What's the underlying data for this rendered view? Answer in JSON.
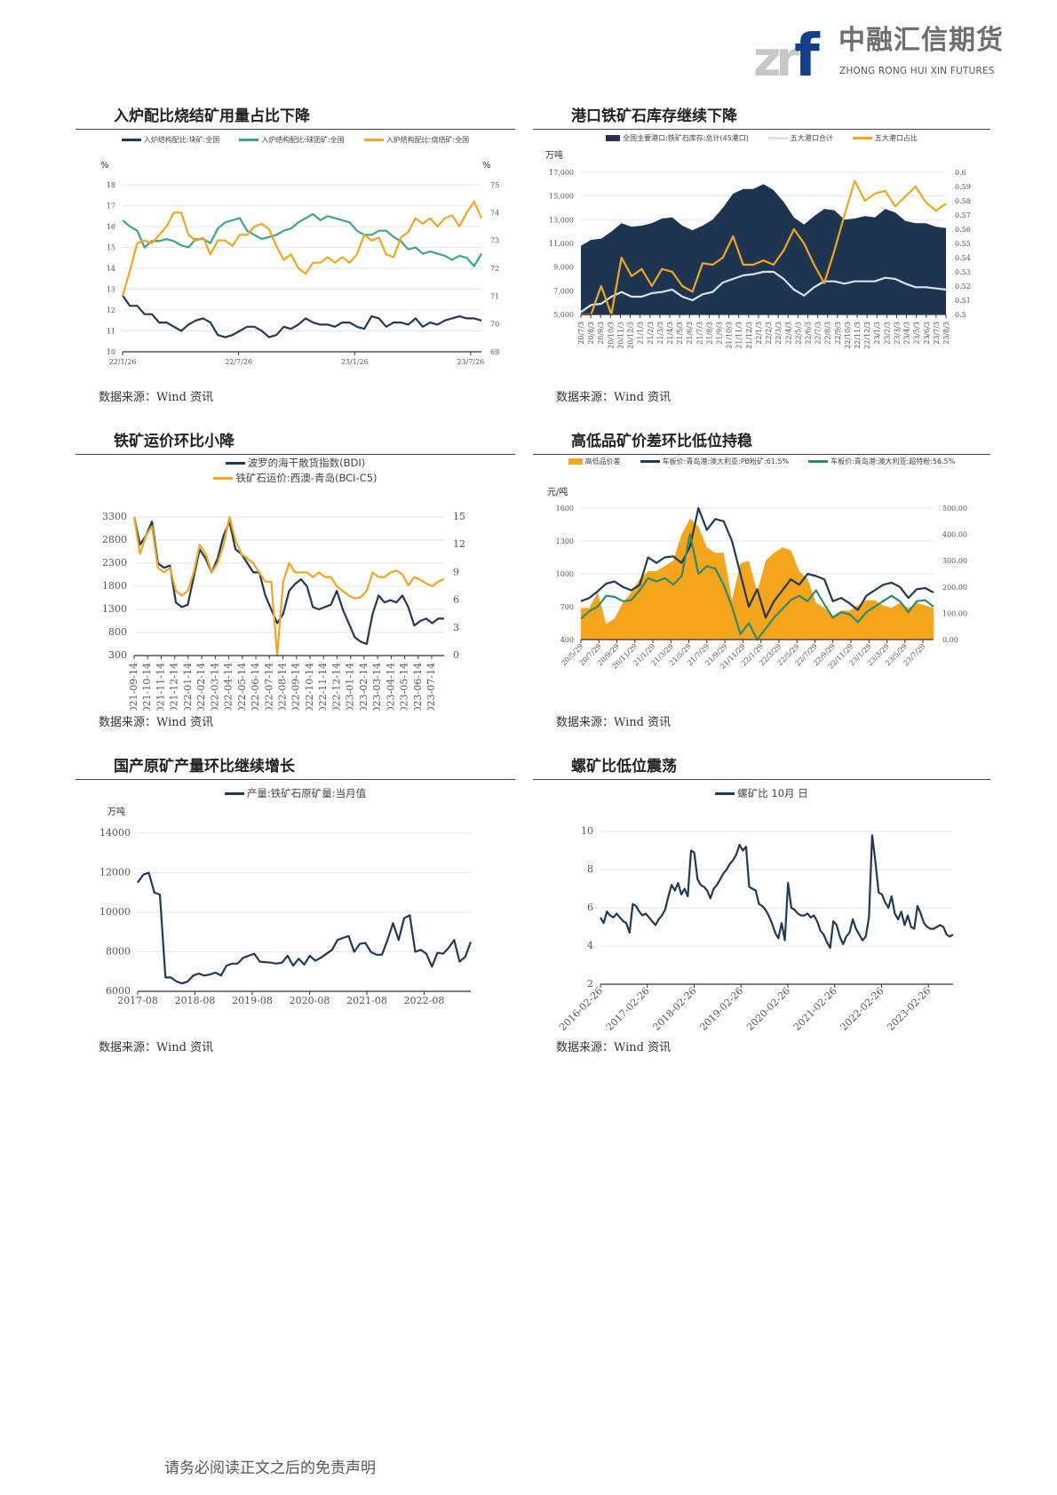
{
  "header": {
    "logo_mark": "zrf",
    "logo_cn": "中融汇信期货",
    "logo_en": "ZHONG RONG HUI XIN FUTURES"
  },
  "footer": "请务必阅读正文之后的免责声明",
  "colors": {
    "navy": "#1f3a56",
    "teal": "#3aa58c",
    "orange": "#f5a51c",
    "light": "#d9e3eb",
    "darkarea": "#1d3550"
  },
  "panels": [
    {
      "title": "入炉配比烧结矿用量占比下降",
      "source": "数据来源：Wind 资讯",
      "unit_left": "%",
      "unit_right": "%"
    },
    {
      "title": "港口铁矿石库存继续下降",
      "source": "数据来源：Wind 资讯",
      "unit_left": "万吨"
    },
    {
      "title": "铁矿运价环比小降",
      "source": "数据来源：Wind 资讯"
    },
    {
      "title": "高低品矿价差环比低位持稳",
      "source": "数据来源：Wind 资讯",
      "unit_left": "元/吨"
    },
    {
      "title": "国产原矿产量环比继续增长",
      "source": "数据来源：Wind 资讯",
      "unit_left": "万吨"
    },
    {
      "title": "螺矿比低位震荡",
      "source": "数据来源：Wind 资讯"
    }
  ],
  "chart_data": [
    {
      "type": "line",
      "title": "入炉配比烧结矿用量占比下降",
      "xticks": [
        "22/1/26",
        "22/7/26",
        "23/1/26",
        "23/7/26"
      ],
      "ylim": [
        10,
        18
      ],
      "yticks": [
        "10",
        "11",
        "12",
        "13",
        "14",
        "15",
        "16",
        "17",
        "18"
      ],
      "y2lim": [
        69,
        75
      ],
      "y2ticks": [
        "69",
        "70",
        "71",
        "72",
        "73",
        "74",
        "75"
      ],
      "series": [
        {
          "name": "入炉结构配比:块矿:全国",
          "axis": "left",
          "color": "#1f3a56",
          "values": [
            12.7,
            12.2,
            12.2,
            11.8,
            11.8,
            11.4,
            11.4,
            11.2,
            11.0,
            11.3,
            11.5,
            11.6,
            11.4,
            10.8,
            10.7,
            10.8,
            11.0,
            11.2,
            11.2,
            11.0,
            10.7,
            10.8,
            11.2,
            11.1,
            11.3,
            11.6,
            11.4,
            11.3,
            11.3,
            11.2,
            11.4,
            11.4,
            11.2,
            11.1,
            11.7,
            11.6,
            11.2,
            11.4,
            11.4,
            11.3,
            11.6,
            11.2,
            11.4,
            11.3,
            11.5,
            11.6,
            11.7,
            11.6,
            11.6,
            11.5
          ]
        },
        {
          "name": "入炉结构配比:球团矿:全国",
          "axis": "left",
          "color": "#3aa58c",
          "values": [
            16.3,
            16.0,
            15.8,
            15.0,
            15.3,
            15.3,
            15.4,
            15.3,
            15.1,
            15.0,
            15.4,
            15.4,
            15.2,
            15.9,
            16.2,
            16.3,
            16.4,
            15.8,
            15.6,
            15.4,
            15.5,
            15.6,
            15.8,
            15.9,
            16.2,
            16.4,
            16.6,
            16.3,
            16.5,
            16.4,
            16.3,
            16.2,
            15.8,
            15.6,
            15.6,
            15.8,
            15.8,
            15.5,
            15.3,
            14.9,
            15.0,
            14.7,
            14.8,
            14.7,
            14.6,
            14.4,
            14.6,
            14.5,
            14.1,
            14.7
          ]
        },
        {
          "name": "入炉结构配比:烧结矿:全国",
          "axis": "right",
          "color": "#f5a51c",
          "values": [
            71,
            71.9,
            72.9,
            73,
            72.9,
            73.2,
            73.5,
            74,
            74,
            73.2,
            73,
            73.1,
            72.5,
            73,
            73,
            72.8,
            73.2,
            73.2,
            73.5,
            73.6,
            73.4,
            72.8,
            72.3,
            72.5,
            72.0,
            71.8,
            72.2,
            72.2,
            72.4,
            72.2,
            72.4,
            72.2,
            72.5,
            73.2,
            73.0,
            73.1,
            72.5,
            72.4,
            73.1,
            73.3,
            73.8,
            73.6,
            73.8,
            73.5,
            73.8,
            73.9,
            73.5,
            74.0,
            74.4,
            73.8
          ]
        }
      ]
    },
    {
      "type": "area",
      "title": "港口铁矿石库存继续下降",
      "xticks": [
        "20/7/3",
        "20/8/3",
        "20/9/3",
        "20/10/3",
        "20/11/3",
        "20/12/3",
        "21/1/3",
        "21/2/3",
        "21/3/3",
        "21/4/3",
        "21/5/3",
        "21/6/3",
        "21/7/3",
        "21/8/3",
        "21/9/3",
        "21/10/3",
        "21/11/3",
        "21/12/3",
        "22/1/3",
        "22/2/3",
        "22/3/3",
        "22/4/3",
        "22/5/3",
        "22/6/3",
        "22/7/3",
        "22/8/3",
        "22/9/3",
        "22/10/3",
        "22/11/3",
        "22/12/3",
        "23/1/3",
        "23/2/3",
        "23/3/3",
        "23/4/3",
        "23/5/3",
        "23/6/3",
        "23/7/3",
        "23/8/3"
      ],
      "ylim": [
        5000,
        17000
      ],
      "yticks": [
        "5,000",
        "7,000",
        "9,000",
        "11,000",
        "13,000",
        "15,000",
        "17,000"
      ],
      "y2lim": [
        0.5,
        0.6
      ],
      "y2ticks": [
        "0.5",
        "0.51",
        "0.52",
        "0.53",
        "0.54",
        "0.55",
        "0.56",
        "0.57",
        "0.58",
        "0.59",
        "0.6"
      ],
      "series": [
        {
          "name": "全国主要港口:铁矿石库存:总计(45港口)",
          "axis": "left",
          "kind": "area",
          "color": "#1d3550",
          "values": [
            10800,
            11300,
            11400,
            12000,
            12700,
            12400,
            12500,
            12700,
            13100,
            13200,
            12500,
            12100,
            12500,
            13000,
            14000,
            15200,
            15600,
            15600,
            16000,
            15500,
            14500,
            13200,
            12600,
            13300,
            13900,
            13800,
            13000,
            13100,
            13300,
            13200,
            13900,
            13600,
            12900,
            12700,
            12700,
            12400,
            12300
          ]
        },
        {
          "name": "五大港口合计",
          "axis": "left",
          "color": "#d9e3eb",
          "values": [
            5200,
            5800,
            5900,
            6500,
            6900,
            6500,
            6500,
            6800,
            6900,
            7100,
            6500,
            6200,
            6700,
            6900,
            7700,
            8000,
            8300,
            8400,
            8600,
            8600,
            8000,
            7100,
            6600,
            7300,
            7800,
            7800,
            7600,
            7800,
            7800,
            7800,
            8100,
            8000,
            7600,
            7300,
            7300,
            7200,
            7100
          ]
        },
        {
          "name": "五大港口占比",
          "axis": "right",
          "color": "#f5a51c",
          "values": [
            0.5,
            0.5,
            0.52,
            0.5,
            0.54,
            0.527,
            0.532,
            0.52,
            0.532,
            0.53,
            0.52,
            0.516,
            0.536,
            0.535,
            0.54,
            0.555,
            0.535,
            0.535,
            0.538,
            0.535,
            0.545,
            0.56,
            0.55,
            0.535,
            0.522,
            0.545,
            0.57,
            0.594,
            0.58,
            0.585,
            0.587,
            0.576,
            0.583,
            0.59,
            0.579,
            0.573,
            0.578
          ]
        }
      ]
    },
    {
      "type": "line",
      "title": "铁矿运价环比小降",
      "xticks": [
        "2021-09-14",
        "2021-10-14",
        "2021-11-14",
        "2021-12-14",
        "2022-01-14",
        "2022-02-14",
        "2022-03-14",
        "2022-04-14",
        "2022-05-14",
        "2022-06-14",
        "2022-07-14",
        "2022-08-14",
        "2022-09-14",
        "2022-10-14",
        "2022-11-14",
        "2022-12-14",
        "2023-01-14",
        "2023-02-14",
        "2023-03-14",
        "2023-04-14",
        "2023-05-14",
        "2023-06-14",
        "2023-07-14"
      ],
      "ylim": [
        300,
        3300
      ],
      "yticks": [
        "300",
        "800",
        "1300",
        "1800",
        "2300",
        "2800",
        "3300"
      ],
      "y2lim": [
        0,
        15
      ],
      "y2ticks": [
        "0",
        "3",
        "6",
        "9",
        "12",
        "15"
      ],
      "series": [
        {
          "name": "波罗的海干散货指数(BDI)",
          "axis": "left",
          "color": "#1f3a56",
          "values": [
            3300,
            2700,
            2900,
            3200,
            2300,
            2200,
            2250,
            1450,
            1350,
            1400,
            2000,
            2600,
            2400,
            2100,
            2400,
            2900,
            3200,
            2600,
            2500,
            2300,
            2100,
            2100,
            1600,
            1300,
            1000,
            1200,
            1700,
            1850,
            1950,
            1800,
            1350,
            1300,
            1350,
            1400,
            1700,
            1300,
            1000,
            700,
            600,
            550,
            1200,
            1600,
            1450,
            1500,
            1450,
            1600,
            1350,
            950,
            1050,
            1100,
            1000,
            1100,
            1100
          ]
        },
        {
          "name": "铁矿石运价:西澳-青岛(BCI-C5)",
          "axis": "right",
          "color": "#f5a51c",
          "values": [
            15,
            11,
            13,
            14,
            9.5,
            9,
            9.5,
            7,
            6.5,
            7,
            9,
            12,
            11,
            9,
            10,
            12,
            15,
            12.5,
            11,
            10.5,
            10,
            9,
            8,
            8,
            0,
            8,
            10,
            9,
            9,
            9,
            8.5,
            9,
            8.5,
            8.5,
            7.5,
            7,
            6.5,
            6.2,
            6.3,
            7,
            9,
            8.5,
            8.5,
            9,
            9.2,
            8.8,
            7.6,
            8.5,
            8.2,
            7.8,
            7.5,
            8.0,
            8.3
          ]
        }
      ]
    },
    {
      "type": "area",
      "title": "高低品矿价差环比低位持稳",
      "xticks": [
        "20/5/29",
        "20/7/29",
        "20/9/29",
        "20/11/29",
        "21/1/29",
        "21/3/29",
        "21/5/29",
        "21/7/29",
        "21/9/29",
        "21/11/29",
        "22/1/29",
        "22/3/29",
        "22/5/29",
        "22/7/29",
        "22/9/29",
        "22/11/29",
        "23/1/29",
        "23/3/29",
        "23/5/29",
        "23/7/29"
      ],
      "ylim": [
        400,
        1600
      ],
      "yticks": [
        "400",
        "700",
        "1000",
        "1300",
        "1600"
      ],
      "y2lim": [
        0,
        500
      ],
      "y2ticks": [
        "0.00",
        "100.00",
        "200.00",
        "300.00",
        "400.00",
        "500.00"
      ],
      "series": [
        {
          "name": "高低品价差",
          "axis": "right",
          "kind": "area",
          "color": "#f5a51c",
          "values": [
            120,
            120,
            180,
            60,
            80,
            140,
            180,
            230,
            260,
            260,
            280,
            300,
            400,
            460,
            430,
            350,
            330,
            330,
            150,
            290,
            300,
            180,
            300,
            330,
            350,
            340,
            260,
            230,
            140,
            120,
            90,
            110,
            110,
            130,
            150,
            150,
            130,
            120,
            140,
            120,
            140,
            130,
            120
          ]
        },
        {
          "name": "车板价:青岛港:澳大利亚:PB粉矿:61.5%",
          "axis": "left",
          "color": "#1f3a56",
          "values": [
            750,
            780,
            840,
            910,
            930,
            880,
            850,
            900,
            1150,
            1100,
            1150,
            1160,
            1100,
            1250,
            1600,
            1400,
            1500,
            1480,
            1300,
            1000,
            700,
            860,
            600,
            750,
            850,
            950,
            900,
            1000,
            980,
            950,
            750,
            780,
            730,
            670,
            800,
            850,
            900,
            920,
            880,
            780,
            860,
            870,
            830
          ]
        },
        {
          "name": "车板价:青岛港:澳大利亚:超特粉:56.5%",
          "axis": "left",
          "color": "#2f8a72",
          "values": [
            590,
            660,
            700,
            800,
            790,
            750,
            760,
            850,
            960,
            930,
            960,
            900,
            980,
            1360,
            1000,
            1070,
            1050,
            900,
            700,
            450,
            550,
            400,
            500,
            600,
            680,
            760,
            800,
            750,
            850,
            720,
            600,
            650,
            630,
            560,
            650,
            700,
            750,
            800,
            750,
            650,
            750,
            760,
            700
          ]
        }
      ]
    },
    {
      "type": "line",
      "title": "国产原矿产量环比继续增长",
      "xticks": [
        "2017-08",
        "2018-08",
        "2019-08",
        "2020-08",
        "2021-08",
        "2022-08"
      ],
      "ylim": [
        6000,
        14000
      ],
      "yticks": [
        "6000",
        "8000",
        "10000",
        "12000",
        "14000"
      ],
      "series": [
        {
          "name": "产量:铁矿石原矿量:当月值",
          "axis": "left",
          "color": "#1f3a56",
          "values": [
            11500,
            11900,
            12000,
            11000,
            10900,
            6700,
            6700,
            6500,
            6400,
            6500,
            6800,
            6900,
            6800,
            6850,
            6950,
            6800,
            7300,
            7400,
            7400,
            7700,
            7800,
            7900,
            7500,
            7480,
            7450,
            7400,
            7450,
            7800,
            7300,
            7650,
            7350,
            7800,
            7550,
            7700,
            7900,
            8100,
            8600,
            8700,
            8800,
            8000,
            8400,
            8450,
            8000,
            7850,
            7850,
            8600,
            9450,
            8600,
            9700,
            9850,
            8000,
            8100,
            7900,
            7250,
            7950,
            7900,
            8200,
            8600,
            7500,
            7750,
            8500
          ]
        }
      ]
    },
    {
      "type": "line",
      "title": "螺矿比低位震荡",
      "xticks": [
        "2016-02-26",
        "2017-02-26",
        "2018-02-26",
        "2019-02-26",
        "2020-02-26",
        "2021-02-26",
        "2022-02-26",
        "2023-02-26"
      ],
      "ylim": [
        2,
        10
      ],
      "yticks": [
        "2",
        "4",
        "6",
        "8",
        "10"
      ],
      "series": [
        {
          "name": "螺矿比 10月 日",
          "axis": "left",
          "color": "#1f3a56",
          "values": [
            5.5,
            5.2,
            5.8,
            5.6,
            5.5,
            5.7,
            5.5,
            5.3,
            5.2,
            4.7,
            6.2,
            6.1,
            5.8,
            5.6,
            5.7,
            5.5,
            5.3,
            5.1,
            5.4,
            5.6,
            5.9,
            6.6,
            7.2,
            6.9,
            7.3,
            6.7,
            7.0,
            6.6,
            9.0,
            8.9,
            7.5,
            7.2,
            7.1,
            6.9,
            6.5,
            7.0,
            7.2,
            7.5,
            7.8,
            8.0,
            8.3,
            8.5,
            8.8,
            9.3,
            9.0,
            9.2,
            7.1,
            7.0,
            6.9,
            6.2,
            6.1,
            5.9,
            5.6,
            5.2,
            4.7,
            4.4,
            5.2,
            4.3,
            7.3,
            6.0,
            5.9,
            5.7,
            5.6,
            5.6,
            5.7,
            5.5,
            5.6,
            5.3,
            4.8,
            4.6,
            4.2,
            3.9,
            5.3,
            5.1,
            4.5,
            4.1,
            4.5,
            4.7,
            5.4,
            4.9,
            4.6,
            4.3,
            4.5,
            5.5,
            9.8,
            8.4,
            6.8,
            6.7,
            6.3,
            6.0,
            6.6,
            5.7,
            5.4,
            5.8,
            5.1,
            5.6,
            5.0,
            4.9,
            6.1,
            5.7,
            5.2,
            5.0,
            4.9,
            4.9,
            5.0,
            5.1,
            5.0,
            4.6,
            4.5,
            4.6
          ]
        }
      ]
    }
  ]
}
